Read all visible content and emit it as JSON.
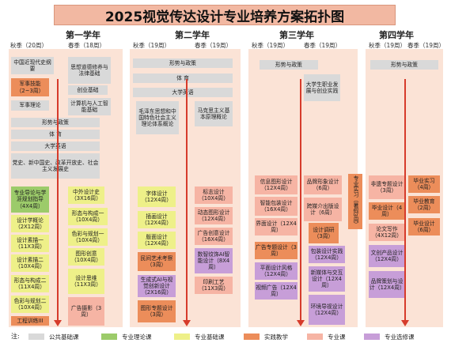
{
  "title": "2025视觉传达设计专业培养方案拓扑图",
  "years": [
    {
      "name": "第一学年",
      "fall": "秋季（20周）",
      "spring": "春季（18周）"
    },
    {
      "name": "第二学年",
      "fall": "秋季（19周）",
      "spring": "春季（19周）"
    },
    {
      "name": "第三学年",
      "fall": "秋季（19周）",
      "spring": "春季（19周）"
    },
    {
      "name": "第四学年",
      "fall": "秋季（19周）",
      "spring": "春季（19周）"
    }
  ],
  "courses": {
    "y1": {
      "zgjdsgy": "中国近现代史纲要",
      "sxdd": "思想道德修养与法律基础",
      "jsjn": "军事技能（2~3周）",
      "cyjc": "创业基础",
      "jsll": "军事理论",
      "jsj": "计算机与人工智能基础",
      "xszc": "形势与政策",
      "ty": "体 育",
      "dxyy": "大学英语",
      "dsh": "党史、新中国史、改革开放史、社会主义发展史",
      "zydl": "专业导论与学涯规划指导（4X4周）",
      "zwsjs": "中外设计史（3X16周）",
      "sjxgl": "设计学概论（2X12周）",
      "xtygcy1": "形态与构成一（10X4周）",
      "scygz1": "色彩与规划一（10X4周）",
      "sjsm1": "设计素描一（11X3周）",
      "txcx": "图形创意（10X4周）",
      "sjsm2": "设计素描二（10X4周）",
      "xtygcy2": "形态与构成二（11X4周）",
      "sjsw": "设计思维（11X3周）",
      "scygz2": "色彩与规划二（10X4周）",
      "ggsy": "广告摄影（3周）",
      "gcxl": "工程训练III"
    },
    "y2": {
      "xszc": "形势与政策",
      "ty": "体 育",
      "dxyy": "大学英语",
      "mzdsx": "毛泽东思想和中国特色社会主义理论体系概论",
      "mkszy": "马克思主义基本原理概论",
      "ztsj": "字体设计（12X4周）",
      "bzsj": "标志设计（10X4周）",
      "chsj": "插画设计（12X4周）",
      "dtcx": "动态图形设计（12X4周）",
      "bmsj": "版面设计（12X4周）",
      "ggcy": "广告创意设计（16X4周）",
      "mjysk": "民间艺术考察（3周）",
      "snwsjAI": "数智纹饰AI智能设计（8X4周）",
      "scsAI": "生成式AI与视觉创新设计（2X16周）",
      "ysgy": "印刷工艺（11X3周）",
      "txzt": "图形专题设计（3周）"
    },
    "y3": {
      "xszc": "形势与政策",
      "dxszy": "大学生职业发展与创业实践",
      "xxtb": "信息图形设计（12X4周）",
      "ppxx": "品牌形象设计（6周）",
      "znbz": "智能包装设计（16X4周）",
      "kjjl": "跨媒介出版设计（6周）",
      "jmsj": "界面设计（12X4周）",
      "sjdy": "设计调研（3周）",
      "ggzt": "广告专题设计（3周）",
      "bzsjsj": "包装设计实践（12X4周）",
      "pmsjfg": "平面设计风格（12X4周）",
      "xmtyjh": "新媒体与交互设计（12X4周）",
      "spgg": "视频广告（12X4周）",
      "hjdx": "环境导视设计（12X4周）",
      "zysx": "专业实习（暑假3周）"
    },
    "y4": {
      "xszc": "形势与政策",
      "fyzt": "非遗专题设计（3周）",
      "bysx": "毕业实习（4周）",
      "bysj": "毕业设计（4周）",
      "byjy": "毕业教育（2周）",
      "bysjzb": "毕业设计（6周）",
      "lwxz": "论文写作（4X12周）",
      "whcp": "文创产品设计（12X4周）",
      "ppch": "品牌策划与设计（12X4周）"
    }
  },
  "legend": {
    "label": "注:",
    "items": [
      {
        "name": "公共基础课",
        "color": "#d9d9d9"
      },
      {
        "name": "专业理论课",
        "color": "#9ccb6a"
      },
      {
        "name": "专业基础课",
        "color": "#eef089"
      },
      {
        "name": "实践教学",
        "color": "#ec8d5a"
      },
      {
        "name": "专业课",
        "color": "#f6b4a4"
      },
      {
        "name": "专业选修课",
        "color": "#c79ed8"
      }
    ]
  }
}
